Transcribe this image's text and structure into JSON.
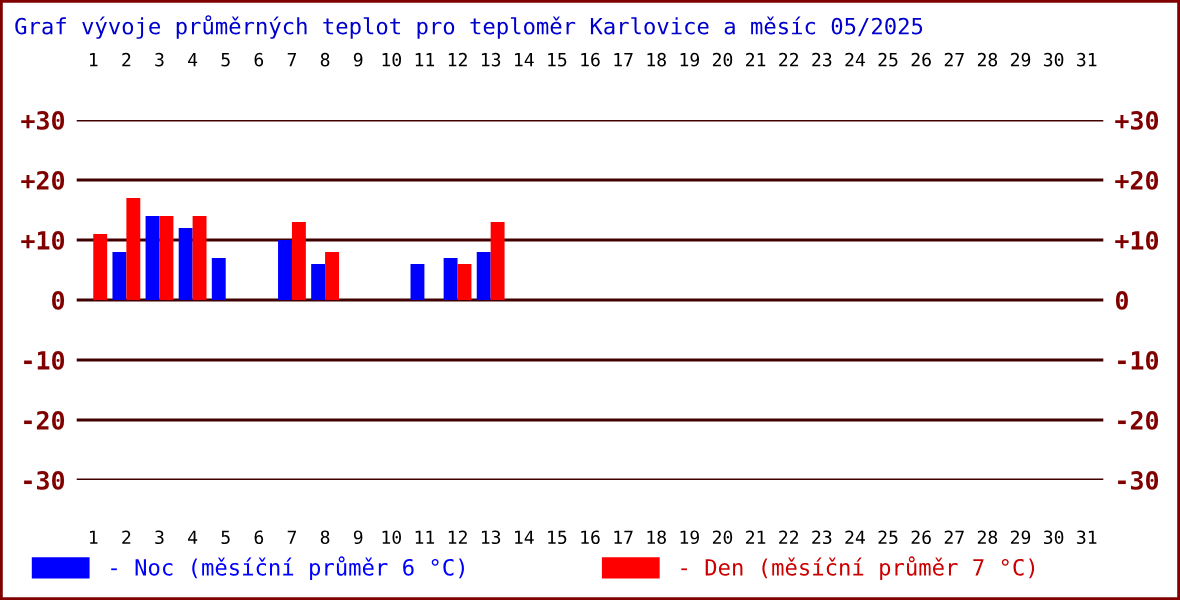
{
  "chart_data": {
    "type": "bar",
    "title": "Graf vývoje průměrných teplot pro teploměr Karlovice a měsíc 05/2025",
    "categories": [
      "1",
      "2",
      "3",
      "4",
      "5",
      "6",
      "7",
      "8",
      "9",
      "10",
      "11",
      "12",
      "13",
      "14",
      "15",
      "16",
      "17",
      "18",
      "19",
      "20",
      "21",
      "22",
      "23",
      "24",
      "25",
      "26",
      "27",
      "28",
      "29",
      "30",
      "31"
    ],
    "series": [
      {
        "name": "- Noc (měsíční průměr 6 °C)",
        "color": "#0000ff",
        "values": [
          null,
          8,
          14,
          12,
          7,
          null,
          10,
          6,
          null,
          null,
          6,
          7,
          8,
          null,
          null,
          null,
          null,
          null,
          null,
          null,
          null,
          null,
          null,
          null,
          null,
          null,
          null,
          null,
          null,
          null,
          null
        ]
      },
      {
        "name": "- Den (měsíční průměr 7 °C)",
        "color": "#ff0000",
        "values": [
          11,
          17,
          14,
          14,
          null,
          null,
          13,
          8,
          null,
          null,
          null,
          6,
          13,
          null,
          null,
          null,
          null,
          null,
          null,
          null,
          null,
          null,
          null,
          null,
          null,
          null,
          null,
          null,
          null,
          null,
          null
        ]
      }
    ],
    "ylim": [
      -30,
      30
    ],
    "yticks": [
      {
        "value": 30,
        "label": "+30"
      },
      {
        "value": 20,
        "label": "+20"
      },
      {
        "value": 10,
        "label": "+10"
      },
      0,
      -10,
      -20,
      -30
    ],
    "y2lim": [
      -30,
      30
    ],
    "y2ticks": [
      {
        "value": 30,
        "label": "+30"
      },
      {
        "value": 20,
        "label": "+20"
      },
      {
        "value": 10,
        "label": "+10"
      },
      0,
      -10,
      -20,
      -30
    ],
    "grid": "y",
    "legend": "bottom"
  }
}
